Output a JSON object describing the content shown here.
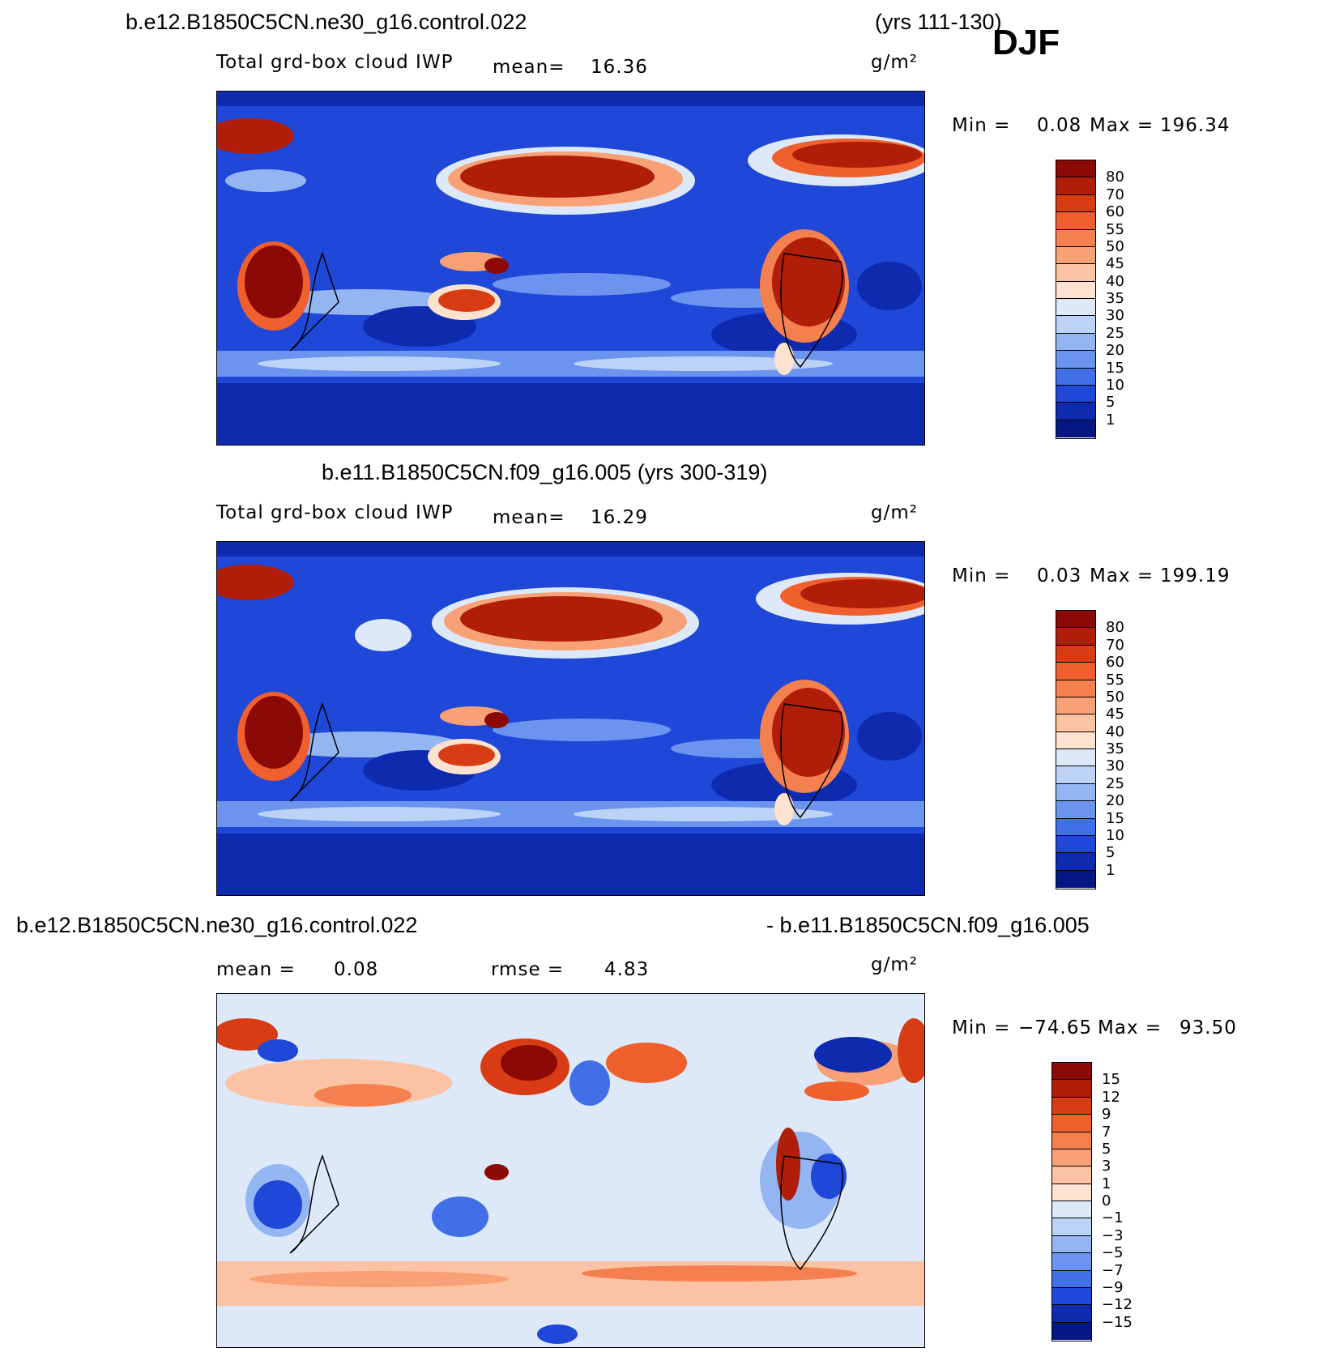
{
  "season": "DJF",
  "panels": [
    {
      "id": "top",
      "title_left": "b.e12.B1850C5CN.ne30_g16.control.022",
      "title_right": "(yrs 111-130)",
      "variable": "Total grd-box cloud IWP",
      "stat1_label": "mean=",
      "stat1_value": "16.36",
      "units": "g/m²",
      "min_label": "Min =",
      "min_value": "0.08",
      "max_label": "Max =",
      "max_value": "196.34",
      "colorbar_levels": [
        "80",
        "70",
        "60",
        "55",
        "50",
        "45",
        "40",
        "35",
        "30",
        "25",
        "20",
        "15",
        "10",
        "5",
        "1"
      ],
      "colorbar_colors": [
        "#8c0a05",
        "#b01e0a",
        "#d83c14",
        "#f0602e",
        "#f5804f",
        "#f8a176",
        "#fbc3a3",
        "#fde3cf",
        "#dde9f9",
        "#bcd2f6",
        "#93b5f2",
        "#6a94ee",
        "#416fe8",
        "#1f47d8",
        "#0e2bb0",
        "#061784"
      ]
    },
    {
      "id": "middle",
      "title_left": "b.e11.B1850C5CN.f09_g16.005 (yrs 300-319)",
      "variable": "Total grd-box cloud IWP",
      "stat1_label": "mean=",
      "stat1_value": "16.29",
      "units": "g/m²",
      "min_label": "Min =",
      "min_value": "0.03",
      "max_label": "Max =",
      "max_value": "199.19",
      "colorbar_levels": [
        "80",
        "70",
        "60",
        "55",
        "50",
        "45",
        "40",
        "35",
        "30",
        "25",
        "20",
        "15",
        "10",
        "5",
        "1"
      ],
      "colorbar_colors": [
        "#8c0a05",
        "#b01e0a",
        "#d83c14",
        "#f0602e",
        "#f5804f",
        "#f8a176",
        "#fbc3a3",
        "#fde3cf",
        "#dde9f9",
        "#bcd2f6",
        "#93b5f2",
        "#6a94ee",
        "#416fe8",
        "#1f47d8",
        "#0e2bb0",
        "#061784"
      ]
    },
    {
      "id": "bottom",
      "title_left": "b.e12.B1850C5CN.ne30_g16.control.022",
      "title_right": "- b.e11.B1850C5CN.f09_g16.005",
      "stat1_label": "mean =",
      "stat1_value": "0.08",
      "stat2_label": "rmse =",
      "stat2_value": "4.83",
      "units": "g/m²",
      "min_label": "Min =",
      "min_value": "−74.65",
      "max_label": "Max =",
      "max_value": "93.50",
      "colorbar_levels": [
        "15",
        "12",
        "9",
        "7",
        "5",
        "3",
        "1",
        "0",
        "−1",
        "−3",
        "−5",
        "−7",
        "−9",
        "−12",
        "−15"
      ],
      "colorbar_colors": [
        "#8c0a05",
        "#b01e0a",
        "#d83c14",
        "#f0602e",
        "#f5804f",
        "#f8a176",
        "#fbc3a3",
        "#fde3cf",
        "#dde9f9",
        "#bcd2f6",
        "#93b5f2",
        "#6a94ee",
        "#416fe8",
        "#1f47d8",
        "#0e2bb0",
        "#061784"
      ]
    }
  ]
}
